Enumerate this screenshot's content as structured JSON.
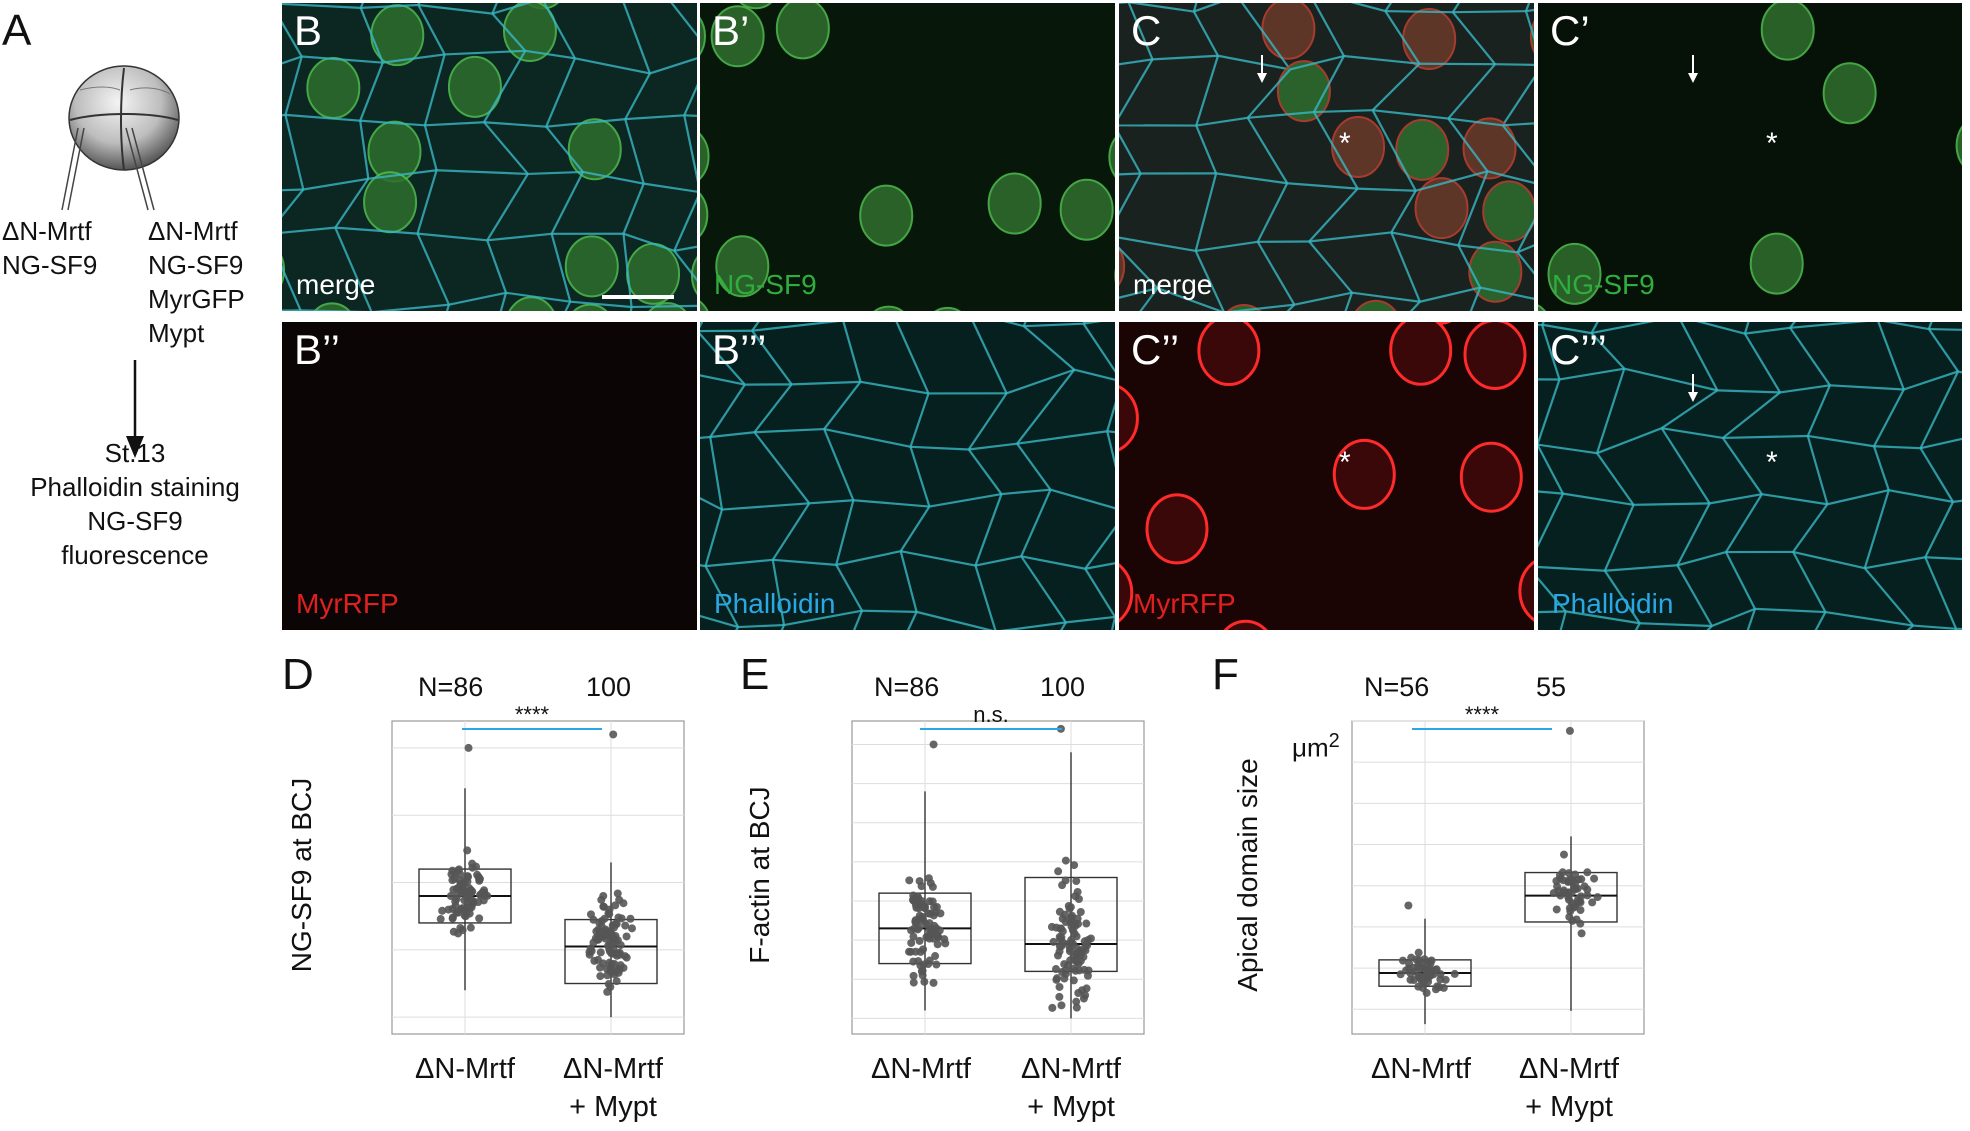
{
  "panel_a": {
    "letter": "A",
    "left_injection": [
      "ΔN-Mrtf",
      "NG-SF9"
    ],
    "right_injection": [
      "ΔN-Mrtf",
      "NG-SF9",
      "MyrGFP",
      "Mypt"
    ],
    "readout": [
      "St.13",
      "Phalloidin staining",
      "NG-SF9",
      "fluorescence"
    ]
  },
  "micrographs": [
    {
      "label": "B",
      "caption": "merge",
      "caption_color": "#ffffff"
    },
    {
      "label": "B’",
      "caption": "NG-SF9",
      "caption_color": "#2fae3e"
    },
    {
      "label": "C",
      "caption": "merge",
      "caption_color": "#ffffff"
    },
    {
      "label": "C’",
      "caption": "NG-SF9",
      "caption_color": "#2fae3e"
    },
    {
      "label": "B’’",
      "caption": "MyrRFP",
      "caption_color": "#e02020"
    },
    {
      "label": "B’’’",
      "caption": "Phalloidin",
      "caption_color": "#2aa8e6"
    },
    {
      "label": "C’’",
      "caption": "MyrRFP",
      "caption_color": "#e02020"
    },
    {
      "label": "C’’’",
      "caption": "Phalloidin",
      "caption_color": "#2aa8e6"
    }
  ],
  "markers": {
    "asterisk": "*"
  },
  "chart_data": [
    {
      "type": "boxplot",
      "letter": "D",
      "categories": [
        "ΔN-Mrtf",
        "ΔN-Mrtf\n+ Mypt"
      ],
      "n_labels": [
        "N=86",
        "100"
      ],
      "ylabel": "NG-SF9 at BCJ",
      "ylim": [
        15,
        108
      ],
      "yticks": [
        20,
        60,
        100
      ],
      "significance": "****",
      "boxes": [
        {
          "q1": 48,
          "median": 56,
          "q3": 64,
          "whisker_low": 28,
          "whisker_high": 88,
          "max": 100
        },
        {
          "q1": 30,
          "median": 41,
          "q3": 49,
          "whisker_low": 20,
          "whisker_high": 66,
          "max": 104
        }
      ],
      "points_n": [
        86,
        100
      ]
    },
    {
      "type": "boxplot",
      "letter": "E",
      "categories": [
        "ΔN-Mrtf",
        "ΔN-Mrtf\n+ Mypt"
      ],
      "n_labels": [
        "N=86",
        "100"
      ],
      "ylabel": "F-actin at BCJ",
      "ylim": [
        16,
        96
      ],
      "yticks": [
        20,
        40,
        60,
        80
      ],
      "significance": "n.s.",
      "boxes": [
        {
          "q1": 34,
          "median": 43,
          "q3": 52,
          "whisker_low": 22,
          "whisker_high": 78,
          "max": 90
        },
        {
          "q1": 32,
          "median": 39,
          "q3": 56,
          "whisker_low": 20,
          "whisker_high": 88,
          "max": 94
        }
      ],
      "points_n": [
        86,
        100
      ]
    },
    {
      "type": "boxplot",
      "letter": "F",
      "categories": [
        "ΔN-Mrtf",
        "ΔN-Mrtf\n+ Mypt"
      ],
      "n_labels": [
        "N=56",
        "55"
      ],
      "ylabel": "Apical domain size",
      "unit": "μm",
      "unit_sup": "2",
      "ylim": [
        50,
        1000
      ],
      "yticks": [
        250,
        500,
        750
      ],
      "significance": "****",
      "boxes": [
        {
          "q1": 195,
          "median": 235,
          "q3": 275,
          "whisker_low": 80,
          "whisker_high": 400,
          "max": 440
        },
        {
          "q1": 390,
          "median": 470,
          "q3": 540,
          "whisker_low": 120,
          "whisker_high": 650,
          "max": 970
        }
      ],
      "points_n": [
        56,
        55
      ]
    }
  ]
}
